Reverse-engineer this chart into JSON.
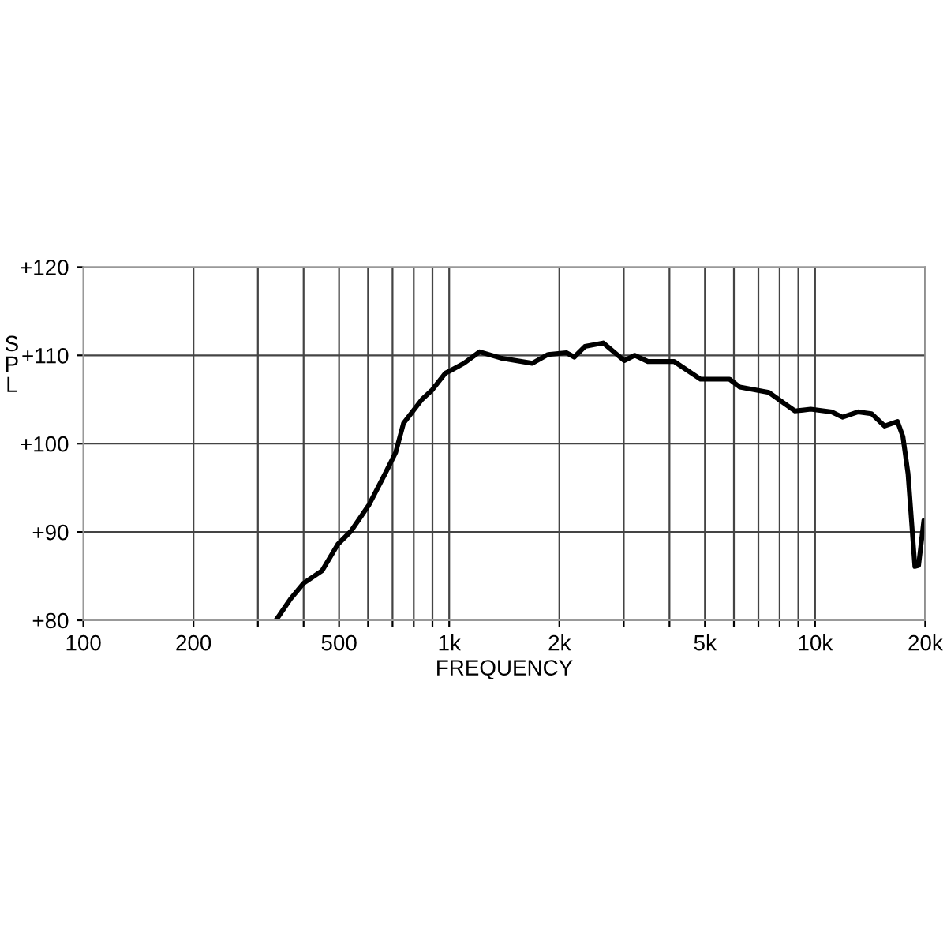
{
  "chart_data": {
    "type": "line",
    "xlabel": "FREQUENCY",
    "ylabel": "SPL",
    "log": "x",
    "grid": true,
    "marker": "none",
    "line_style": "solid",
    "xlim": [
      100,
      20000
    ],
    "ylim": [
      80,
      120
    ],
    "xticks": [
      {
        "value": 100,
        "label": "100"
      },
      {
        "value": 200,
        "label": "200"
      },
      {
        "value": 300,
        "label": null
      },
      {
        "value": 400,
        "label": null
      },
      {
        "value": 500,
        "label": "500"
      },
      {
        "value": 600,
        "label": null
      },
      {
        "value": 700,
        "label": null
      },
      {
        "value": 800,
        "label": null
      },
      {
        "value": 900,
        "label": null
      },
      {
        "value": 1000,
        "label": "1k"
      },
      {
        "value": 2000,
        "label": "2k"
      },
      {
        "value": 3000,
        "label": null
      },
      {
        "value": 4000,
        "label": null
      },
      {
        "value": 5000,
        "label": "5k"
      },
      {
        "value": 6000,
        "label": null
      },
      {
        "value": 7000,
        "label": null
      },
      {
        "value": 8000,
        "label": null
      },
      {
        "value": 9000,
        "label": null
      },
      {
        "value": 10000,
        "label": "10k"
      },
      {
        "value": 20000,
        "label": "20k"
      }
    ],
    "yticks": [
      {
        "value": 80,
        "label": "+80"
      },
      {
        "value": 90,
        "label": "+90"
      },
      {
        "value": 100,
        "label": "+100"
      },
      {
        "value": 110,
        "label": "+110"
      },
      {
        "value": 120,
        "label": "+120"
      }
    ],
    "series": [
      {
        "color": "#000000",
        "x": [
          336,
          368,
          400,
          449,
          496,
          539,
          604,
          668,
          714,
          750,
          842,
          899,
          977,
          1000,
          1097,
          1211,
          1383,
          1687,
          1863,
          2090,
          2197,
          2349,
          2636,
          3009,
          3214,
          3491,
          4120,
          4862,
          5836,
          6230,
          7475,
          8810,
          9730,
          11110,
          11880,
          13120,
          14260,
          15480,
          16800,
          17380,
          17950,
          18740,
          19180,
          19830
        ],
        "values": [
          80,
          82.4,
          84.2,
          85.6,
          88.6,
          90.1,
          93.1,
          96.6,
          99,
          102.3,
          105,
          106.1,
          108,
          108.2,
          109.1,
          110.4,
          109.7,
          109.1,
          110.1,
          110.3,
          109.8,
          111,
          111.4,
          109.4,
          110,
          109.3,
          109.3,
          107.3,
          107.3,
          106.4,
          105.8,
          103.7,
          103.9,
          103.6,
          103,
          103.6,
          103.4,
          102,
          102.5,
          100.8,
          96.6,
          86.1,
          86.2,
          91.3
        ]
      }
    ]
  }
}
